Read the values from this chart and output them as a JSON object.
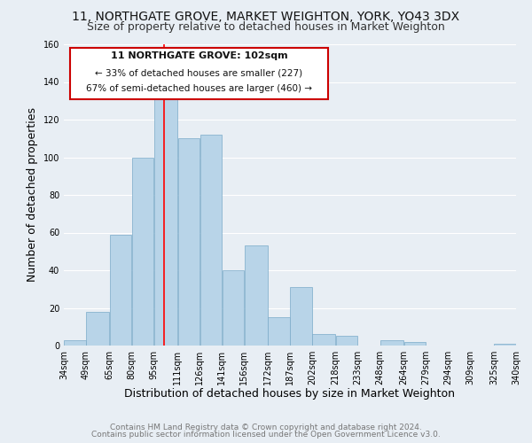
{
  "title1": "11, NORTHGATE GROVE, MARKET WEIGHTON, YORK, YO43 3DX",
  "title2": "Size of property relative to detached houses in Market Weighton",
  "xlabel": "Distribution of detached houses by size in Market Weighton",
  "ylabel": "Number of detached properties",
  "bar_color": "#b8d4e8",
  "bar_edge_color": "#7aaac8",
  "vline_x": 102,
  "vline_color": "red",
  "bin_edges": [
    34,
    49,
    65,
    80,
    95,
    111,
    126,
    141,
    156,
    172,
    187,
    202,
    218,
    233,
    248,
    264,
    279,
    294,
    309,
    325,
    340
  ],
  "bar_heights": [
    3,
    18,
    59,
    100,
    133,
    110,
    112,
    40,
    53,
    15,
    31,
    6,
    5,
    0,
    3,
    2,
    0,
    0,
    0,
    1
  ],
  "xlim": [
    34,
    340
  ],
  "ylim": [
    0,
    160
  ],
  "yticks": [
    0,
    20,
    40,
    60,
    80,
    100,
    120,
    140,
    160
  ],
  "xtick_labels": [
    "34sqm",
    "49sqm",
    "65sqm",
    "80sqm",
    "95sqm",
    "111sqm",
    "126sqm",
    "141sqm",
    "156sqm",
    "172sqm",
    "187sqm",
    "202sqm",
    "218sqm",
    "233sqm",
    "248sqm",
    "264sqm",
    "279sqm",
    "294sqm",
    "309sqm",
    "325sqm",
    "340sqm"
  ],
  "annotation_title": "11 NORTHGATE GROVE: 102sqm",
  "annotation_line1": "← 33% of detached houses are smaller (227)",
  "annotation_line2": "67% of semi-detached houses are larger (460) →",
  "annotation_box_color": "#ffffff",
  "annotation_box_edge": "#cc0000",
  "footer1": "Contains HM Land Registry data © Crown copyright and database right 2024.",
  "footer2": "Contains public sector information licensed under the Open Government Licence v3.0.",
  "bg_color": "#e8eef4",
  "grid_color": "#ffffff",
  "title_fontsize": 10,
  "subtitle_fontsize": 9,
  "axis_label_fontsize": 9,
  "tick_fontsize": 7,
  "footer_fontsize": 6.5,
  "annot_title_fontsize": 8,
  "annot_text_fontsize": 7.5
}
